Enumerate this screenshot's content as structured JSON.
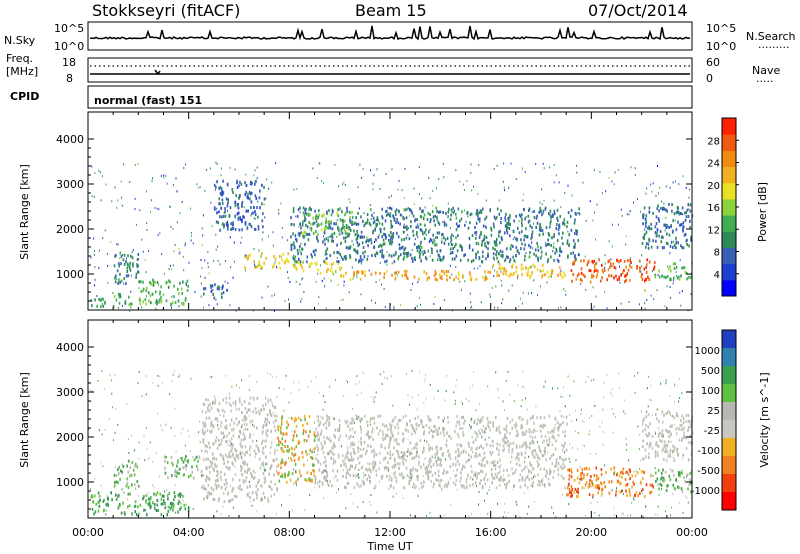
{
  "header": {
    "station": "Stokkseyri (fitACF)",
    "beam": "Beam 15",
    "date": "07/Oct/2014"
  },
  "strips": {
    "nsky": {
      "left_label": "N.Sky",
      "left_ticks": [
        "10^5",
        "10^0"
      ],
      "right_ticks": [
        "10^5",
        "10^0"
      ],
      "right_label": "N.Search",
      "right_marker": "........."
    },
    "freq": {
      "left_label1": "Freq.",
      "left_label2": "[MHz]",
      "left_ticks": [
        "18",
        "8"
      ],
      "right_ticks": [
        "60",
        "0"
      ],
      "right_label": "Nave",
      "right_marker": "....."
    },
    "cpid": {
      "label": "CPID",
      "mode": "normal (fast) 151"
    }
  },
  "axes": {
    "x_ticks": [
      "00:00",
      "04:00",
      "08:00",
      "12:00",
      "16:00",
      "20:00",
      "00:00"
    ],
    "x_label": "Time UT",
    "y_ticks": [
      "1000",
      "2000",
      "3000",
      "4000"
    ],
    "y_label": "Slant Range [km]"
  },
  "chart_data": [
    {
      "type": "heatmap",
      "quantity": "power",
      "x_range_hours": [
        0,
        24
      ],
      "y_range_km": [
        200,
        4600
      ],
      "colorbar": {
        "label": "Power [dB]",
        "ticks": [
          "28",
          "24",
          "20",
          "16",
          "12",
          "8",
          "4"
        ],
        "tick_values": [
          28,
          24,
          20,
          16,
          12,
          8,
          4
        ],
        "range": [
          0,
          32
        ],
        "colors": [
          "#0000ff",
          "#1f3fd0",
          "#3a5fb8",
          "#2f8a5a",
          "#3fae55",
          "#8cd23c",
          "#e8e020",
          "#f0b020",
          "#f08a10",
          "#f05a10",
          "#ff2000"
        ]
      },
      "regions": [
        {
          "t0": 0.1,
          "t1": 1.8,
          "r0": 300,
          "r1": 600,
          "value": 12
        },
        {
          "t0": 1.0,
          "t1": 2.0,
          "r0": 800,
          "r1": 1500,
          "value": 10
        },
        {
          "t0": 2.0,
          "t1": 4.0,
          "r0": 350,
          "r1": 900,
          "value": 13
        },
        {
          "t0": 4.5,
          "t1": 5.5,
          "r0": 500,
          "r1": 800,
          "value": 8
        },
        {
          "t0": 5.0,
          "t1": 7.0,
          "r0": 2000,
          "r1": 3100,
          "value": 7
        },
        {
          "t0": 6.2,
          "t1": 8.0,
          "r0": 1150,
          "r1": 1500,
          "value": 20
        },
        {
          "t0": 8.0,
          "t1": 10.0,
          "r0": 1050,
          "r1": 1300,
          "value": 19
        },
        {
          "t0": 10.0,
          "t1": 16.0,
          "r0": 900,
          "r1": 1100,
          "value": 23
        },
        {
          "t0": 16.0,
          "t1": 19.0,
          "r0": 950,
          "r1": 1250,
          "value": 21
        },
        {
          "t0": 19.0,
          "t1": 22.5,
          "r0": 850,
          "r1": 1350,
          "value": 28
        },
        {
          "t0": 22.5,
          "t1": 24.0,
          "r0": 900,
          "r1": 1300,
          "value": 14
        },
        {
          "t0": 8.0,
          "t1": 19.5,
          "r0": 1300,
          "r1": 2500,
          "value": 9
        },
        {
          "t0": 8.5,
          "t1": 10.5,
          "r0": 1900,
          "r1": 2400,
          "value": 15
        },
        {
          "t0": 22.0,
          "t1": 24.0,
          "r0": 1600,
          "r1": 2600,
          "value": 8
        }
      ]
    },
    {
      "type": "heatmap",
      "quantity": "velocity",
      "x_range_hours": [
        0,
        24
      ],
      "y_range_km": [
        200,
        4600
      ],
      "colorbar": {
        "label": "Velocity [m s^-1]",
        "ticks": [
          "1000",
          "500",
          "100",
          "25",
          "-25",
          "-100",
          "-500",
          "-1000"
        ],
        "colors": [
          "#2040c0",
          "#3080b0",
          "#3aa050",
          "#60c040",
          "#b8b8b0",
          "#c8c8c0",
          "#f0b020",
          "#f08020",
          "#f04010",
          "#ff0000"
        ]
      },
      "regions": [
        {
          "t0": 0.1,
          "t1": 4.0,
          "r0": 300,
          "r1": 800,
          "value_class": "positive-100"
        },
        {
          "t0": 1.0,
          "t1": 2.0,
          "r0": 900,
          "r1": 1500,
          "value_class": "positive-25"
        },
        {
          "t0": 3.0,
          "t1": 4.5,
          "r0": 1100,
          "r1": 1600,
          "value_class": "positive-25"
        },
        {
          "t0": 4.5,
          "t1": 7.5,
          "r0": 600,
          "r1": 2900,
          "value_class": "ground"
        },
        {
          "t0": 7.5,
          "t1": 9.0,
          "r0": 1000,
          "r1": 2500,
          "value_class": "negative-100"
        },
        {
          "t0": 9.0,
          "t1": 19.0,
          "r0": 900,
          "r1": 2500,
          "value_class": "ground"
        },
        {
          "t0": 19.0,
          "t1": 22.5,
          "r0": 700,
          "r1": 1350,
          "value_class": "negative-500"
        },
        {
          "t0": 22.5,
          "t1": 24.0,
          "r0": 800,
          "r1": 1300,
          "value_class": "positive-25"
        },
        {
          "t0": 22.0,
          "t1": 24.0,
          "r0": 1500,
          "r1": 2600,
          "value_class": "ground"
        }
      ]
    }
  ]
}
